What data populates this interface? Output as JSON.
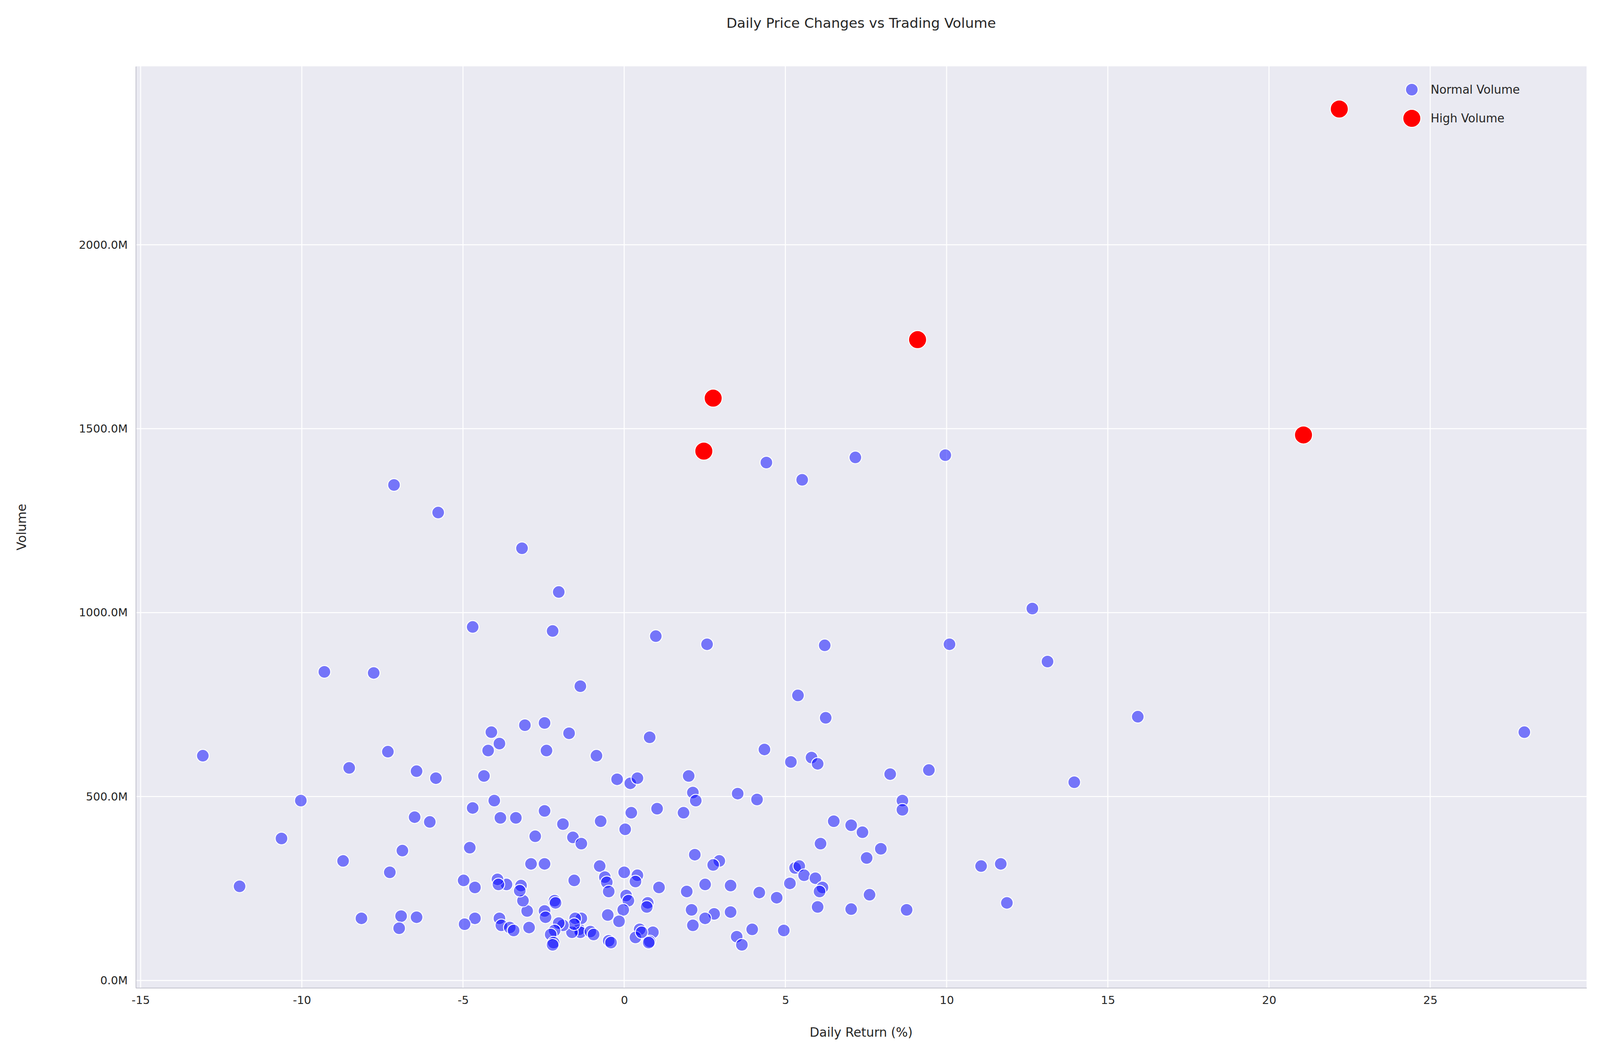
{
  "chart_data": {
    "type": "scatter",
    "title": "Daily Price Changes vs Trading Volume",
    "x_label": "Daily Return (%)",
    "y_label": "Volume",
    "xlim": [
      -15.15,
      29.85
    ],
    "ylim": [
      -20000000,
      2485000000
    ],
    "xticks": [
      -15,
      -10,
      -5,
      0,
      5,
      10,
      15,
      20,
      25
    ],
    "yticks": [
      {
        "value": 0,
        "label": "0.0M"
      },
      {
        "value": 500000000,
        "label": "500.0M"
      },
      {
        "value": 1000000000,
        "label": "1000.0M"
      },
      {
        "value": 1500000000,
        "label": "1500.0M"
      },
      {
        "value": 2000000000,
        "label": "2000.0M"
      }
    ],
    "grid": true,
    "legend": "upper right",
    "series": [
      {
        "name": "Normal Volume",
        "color": "blue",
        "marker": "o",
        "x": [
          -7.14,
          -5.77,
          -3.17,
          -2.03,
          -4.7,
          -2.22,
          0.98,
          2.57,
          6.22,
          10.09,
          12.66,
          13.13,
          4.41,
          5.52,
          7.17,
          9.96,
          -9.3,
          -7.77,
          -1.36,
          5.39,
          6.25,
          15.93,
          27.92,
          -13.07,
          -10.03,
          -10.63,
          -11.93,
          -8.53,
          -7.33,
          -6.44,
          -5.84,
          -4.35,
          -4.12,
          -3.87,
          -4.22,
          -3.08,
          -2.47,
          -2.41,
          -1.71,
          -0.86,
          0.79,
          -0.22,
          0.19,
          0.41,
          2.0,
          2.13,
          2.22,
          4.35,
          5.81,
          5.17,
          6.0,
          8.25,
          9.45,
          13.96,
          8.63,
          8.63,
          3.52,
          4.12,
          1.02,
          0.22,
          1.84,
          0.03,
          -0.73,
          -1.9,
          -2.47,
          -3.36,
          -4.03,
          -3.84,
          -4.7,
          -6.5,
          -6.03,
          -4.79,
          -6.88,
          -8.72,
          -7.27,
          -2.76,
          -1.59,
          -1.33,
          6.5,
          7.04,
          7.39,
          6.09,
          7.96,
          7.52,
          2.19,
          2.95,
          2.76,
          -2.89,
          -2.47,
          -0.76,
          0.0,
          0.41,
          -0.6,
          -0.54,
          0.35,
          1.08,
          2.51,
          3.3,
          5.3,
          5.43,
          5.58,
          5.93,
          5.14,
          6.15,
          6.06,
          11.07,
          11.68,
          11.87,
          8.76,
          7.04,
          7.61,
          6.0,
          4.73,
          4.19,
          3.3,
          2.79,
          2.51,
          2.09,
          1.94,
          2.13,
          0.06,
          0.13,
          0.73,
          0.7,
          -0.03,
          -0.16,
          -0.51,
          -0.48,
          0.89,
          0.79,
          0.48,
          0.35,
          0.54,
          -0.48,
          -0.41,
          -1.4,
          -1.33,
          -1.52,
          -1.36,
          -1.05,
          -0.95,
          -1.62,
          -1.55,
          -1.9,
          -2.03,
          -2.16,
          -2.28,
          -2.19,
          -2.22,
          -1.55,
          -2.47,
          -2.44,
          -2.16,
          -2.13,
          -3.01,
          -3.14,
          -3.2,
          -3.24,
          -3.65,
          -3.93,
          -3.9,
          -4.63,
          -4.98,
          -3.87,
          -3.81,
          -3.55,
          -3.43,
          -2.95,
          -4.63,
          -4.95,
          -6.44,
          -6.92,
          -6.98,
          -8.15,
          3.49,
          3.65,
          3.97,
          4.95,
          0.76
        ],
        "values": [
          1347000000,
          1272000000,
          1175000000,
          1056000000,
          961000000,
          950000000,
          936000000,
          914000000,
          911000000,
          914000000,
          1011000000,
          867000000,
          1408000000,
          1361000000,
          1422000000,
          1428000000,
          839000000,
          836000000,
          800000000,
          775000000,
          714000000,
          717000000,
          675000000,
          611000000,
          489000000,
          386000000,
          256000000,
          578000000,
          622000000,
          569000000,
          550000000,
          556000000,
          675000000,
          644000000,
          625000000,
          694000000,
          700000000,
          625000000,
          672000000,
          611000000,
          661000000,
          547000000,
          536000000,
          550000000,
          556000000,
          511000000,
          489000000,
          628000000,
          606000000,
          594000000,
          589000000,
          561000000,
          572000000,
          539000000,
          489000000,
          464000000,
          508000000,
          492000000,
          467000000,
          456000000,
          456000000,
          411000000,
          433000000,
          425000000,
          461000000,
          442000000,
          489000000,
          442000000,
          469000000,
          444000000,
          431000000,
          361000000,
          353000000,
          325000000,
          294000000,
          392000000,
          389000000,
          372000000,
          433000000,
          422000000,
          403000000,
          372000000,
          358000000,
          333000000,
          342000000,
          325000000,
          314000000,
          317000000,
          317000000,
          311000000,
          294000000,
          286000000,
          281000000,
          267000000,
          269000000,
          253000000,
          261000000,
          258000000,
          306000000,
          311000000,
          286000000,
          278000000,
          264000000,
          253000000,
          242000000,
          311000000,
          317000000,
          211000000,
          192000000,
          194000000,
          233000000,
          200000000,
          225000000,
          239000000,
          186000000,
          181000000,
          169000000,
          192000000,
          242000000,
          150000000,
          231000000,
          217000000,
          211000000,
          200000000,
          192000000,
          161000000,
          178000000,
          242000000,
          131000000,
          106000000,
          139000000,
          117000000,
          131000000,
          108000000,
          103000000,
          139000000,
          169000000,
          169000000,
          131000000,
          133000000,
          125000000,
          131000000,
          153000000,
          150000000,
          156000000,
          136000000,
          125000000,
          103000000,
          97000000,
          272000000,
          189000000,
          172000000,
          217000000,
          211000000,
          189000000,
          217000000,
          258000000,
          244000000,
          261000000,
          275000000,
          261000000,
          253000000,
          272000000,
          169000000,
          150000000,
          144000000,
          136000000,
          144000000,
          169000000,
          153000000,
          172000000,
          175000000,
          142000000,
          169000000,
          119000000,
          97000000,
          139000000,
          136000000,
          103000000
        ]
      },
      {
        "name": "High Volume",
        "color": "red",
        "marker": "o",
        "x": [
          22.18,
          9.1,
          2.76,
          2.47,
          21.07
        ],
        "values": [
          2369000000,
          1742000000,
          1583000000,
          1439000000,
          1483000000
        ]
      }
    ]
  }
}
